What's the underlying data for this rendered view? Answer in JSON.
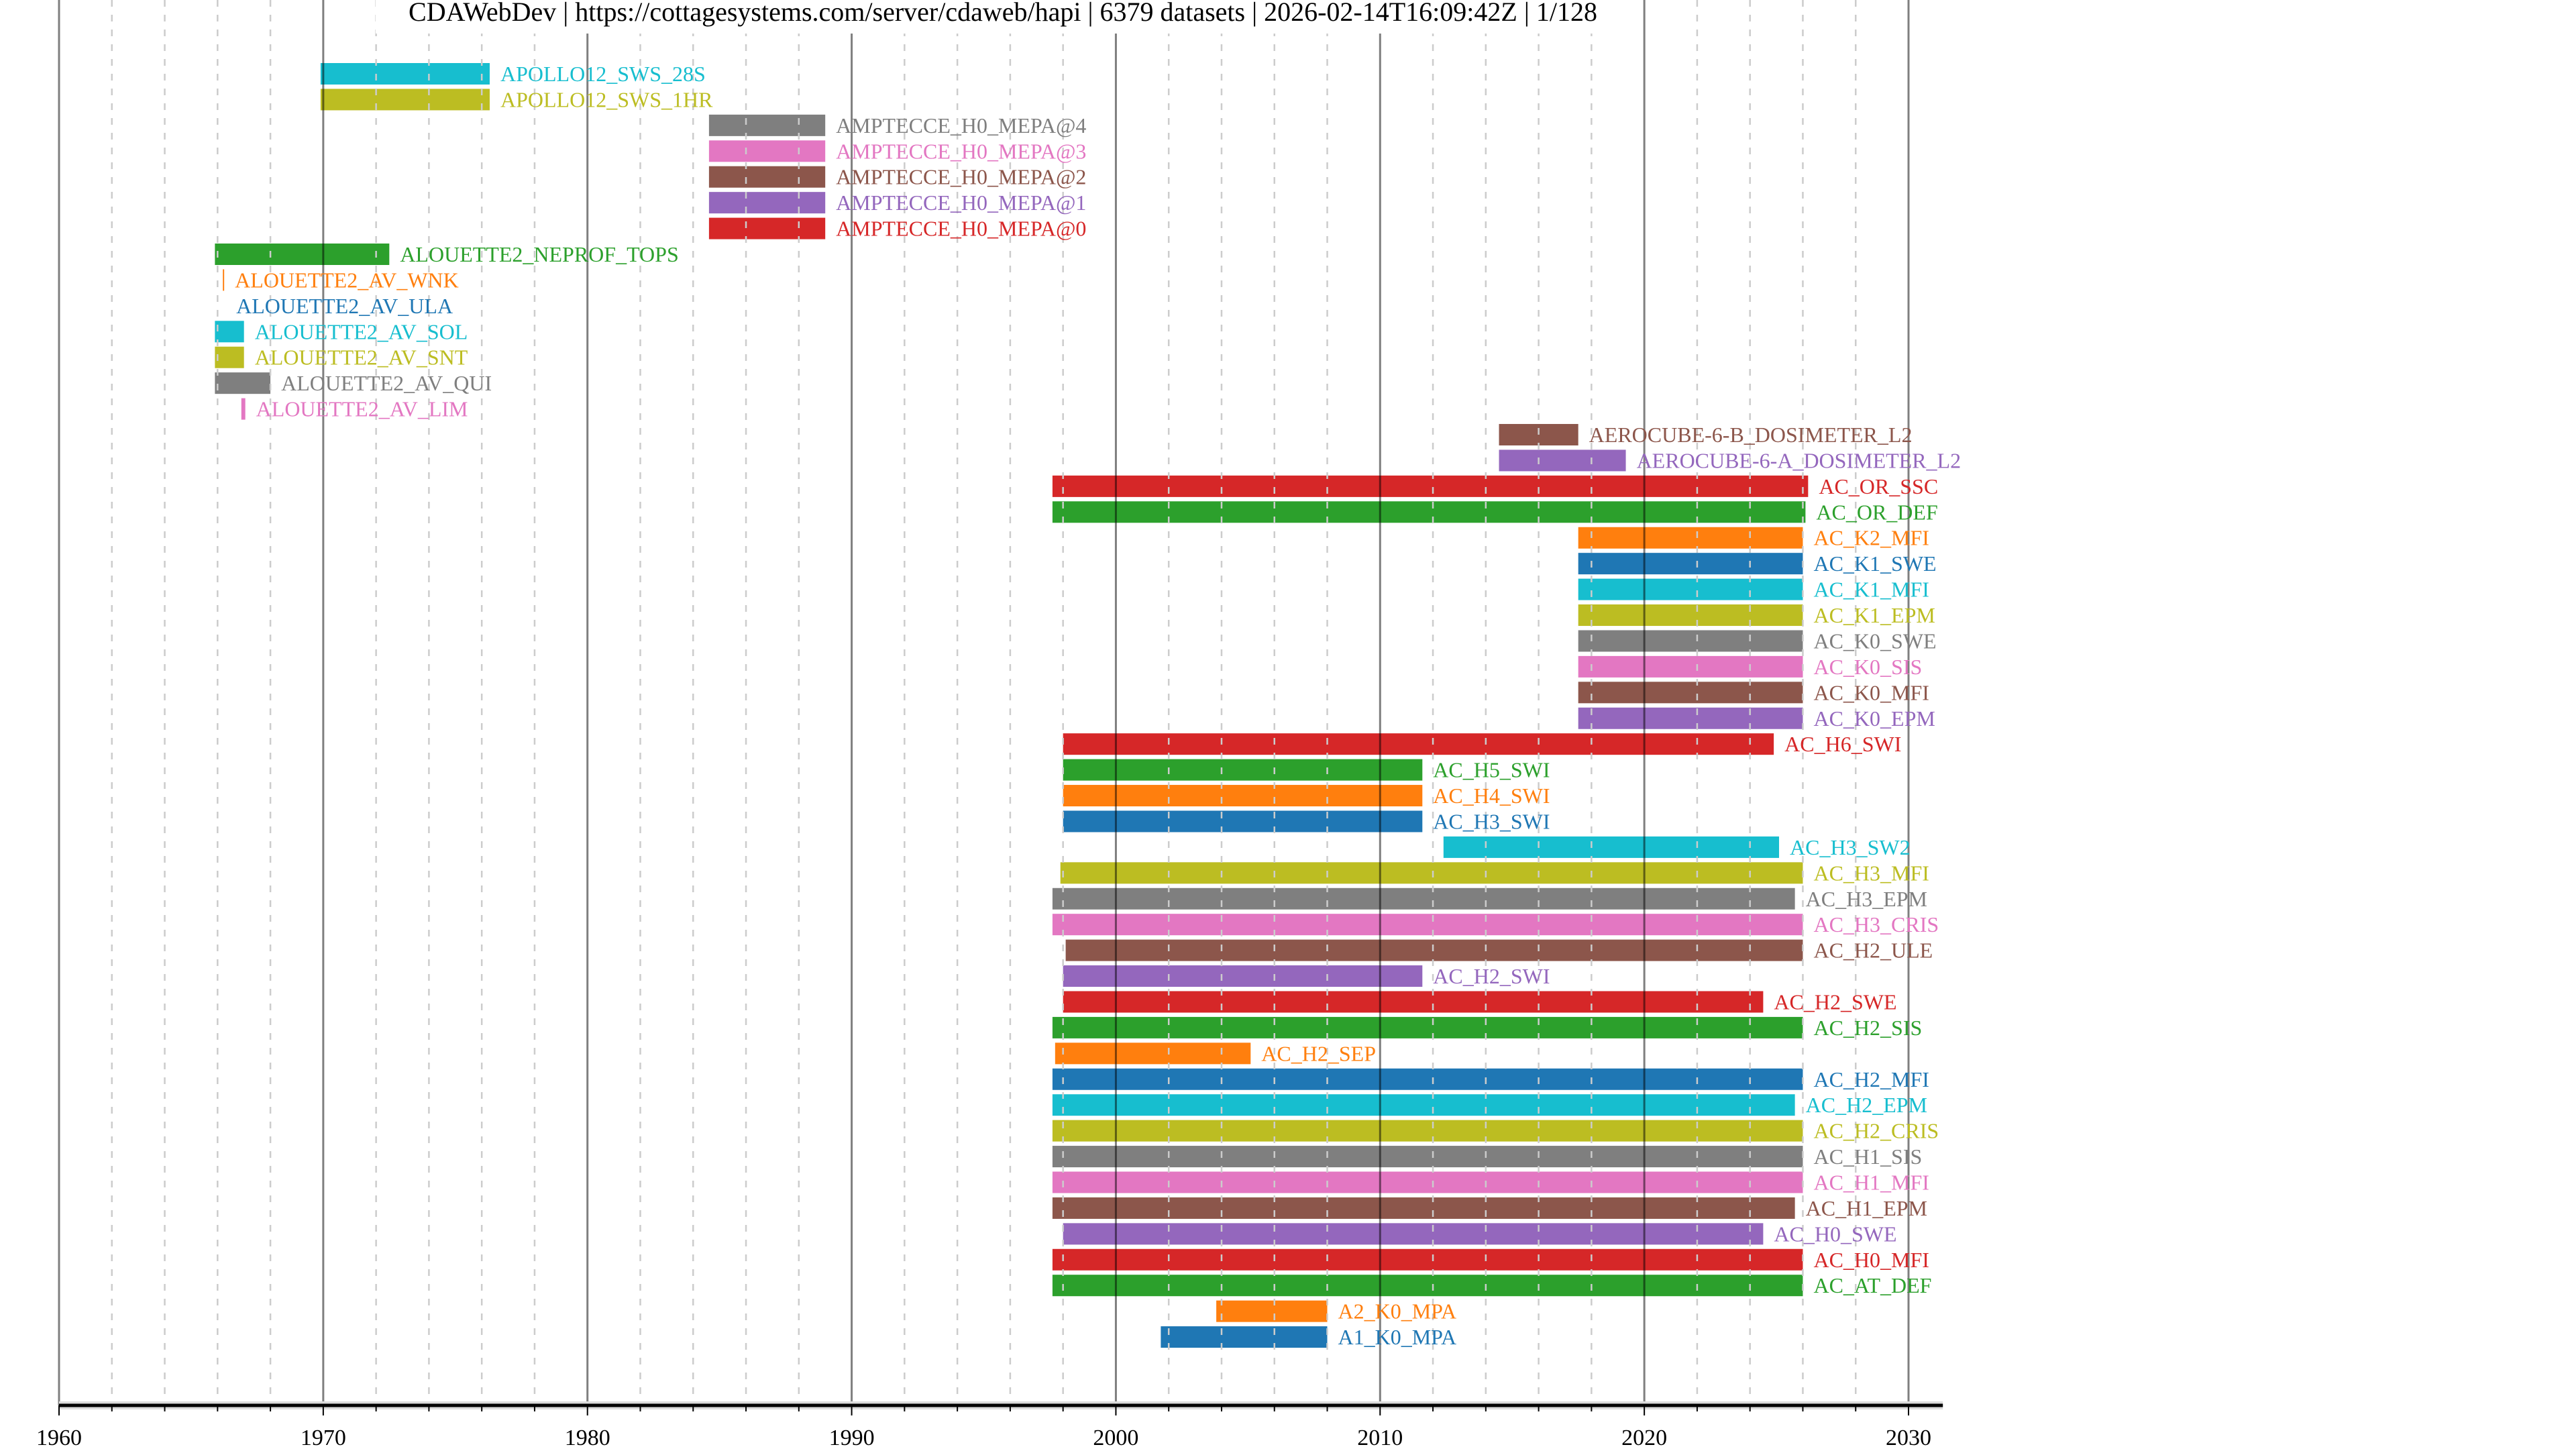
{
  "chart_data": {
    "type": "bar",
    "orientation": "horizontal-timeline",
    "title": "CDAWebDev | https://cottagesystems.com/server/cdaweb/hapi | 6379 datasets | 2026-02-14T16:09:42Z | 1/128",
    "xlabel": "",
    "ylabel": "",
    "xlim": [
      1960,
      2031.3
    ],
    "xticks": [
      "1960",
      "1970",
      "1980",
      "1990",
      "2000",
      "2010",
      "2020",
      "2030"
    ],
    "grid": {
      "major": "every 10 years, solid",
      "minor": "every 2 years, dashed"
    },
    "legend": "none (labels at bar ends)",
    "palette": [
      "#1f77b4",
      "#ff7f0e",
      "#2ca02c",
      "#d62728",
      "#9467bd",
      "#8c564b",
      "#e377c2",
      "#7f7f7f",
      "#bcbd22",
      "#17becf"
    ],
    "series": [
      {
        "name": "APOLLO12_SWS_28S",
        "start": 1969.9,
        "end": 1976.3,
        "color": "#17becf"
      },
      {
        "name": "APOLLO12_SWS_1HR",
        "start": 1969.9,
        "end": 1976.3,
        "color": "#bcbd22"
      },
      {
        "name": "AMPTECCE_H0_MEPA@4",
        "start": 1984.6,
        "end": 1989.0,
        "color": "#7f7f7f"
      },
      {
        "name": "AMPTECCE_H0_MEPA@3",
        "start": 1984.6,
        "end": 1989.0,
        "color": "#e377c2"
      },
      {
        "name": "AMPTECCE_H0_MEPA@2",
        "start": 1984.6,
        "end": 1989.0,
        "color": "#8c564b"
      },
      {
        "name": "AMPTECCE_H0_MEPA@1",
        "start": 1984.6,
        "end": 1989.0,
        "color": "#9467bd"
      },
      {
        "name": "AMPTECCE_H0_MEPA@0",
        "start": 1984.6,
        "end": 1989.0,
        "color": "#d62728"
      },
      {
        "name": "ALOUETTE2_NEPROF_TOPS",
        "start": 1965.9,
        "end": 1972.5,
        "color": "#2ca02c"
      },
      {
        "name": "ALOUETTE2_AV_WNK",
        "start": 1966.2,
        "end": 1966.25,
        "color": "#ff7f0e"
      },
      {
        "name": "ALOUETTE2_AV_ULA",
        "start": 1966.3,
        "end": 1966.3,
        "color": "#1f77b4"
      },
      {
        "name": "ALOUETTE2_AV_SOL",
        "start": 1965.9,
        "end": 1967.0,
        "color": "#17becf"
      },
      {
        "name": "ALOUETTE2_AV_SNT",
        "start": 1965.9,
        "end": 1967.0,
        "color": "#bcbd22"
      },
      {
        "name": "ALOUETTE2_AV_QUI",
        "start": 1965.9,
        "end": 1968.0,
        "color": "#7f7f7f"
      },
      {
        "name": "ALOUETTE2_AV_LIM",
        "start": 1966.9,
        "end": 1967.05,
        "color": "#e377c2"
      },
      {
        "name": "AEROCUBE-6-B_DOSIMETER_L2",
        "start": 2014.5,
        "end": 2017.5,
        "color": "#8c564b"
      },
      {
        "name": "AEROCUBE-6-A_DOSIMETER_L2",
        "start": 2014.5,
        "end": 2019.3,
        "color": "#9467bd"
      },
      {
        "name": "AC_OR_SSC",
        "start": 1997.6,
        "end": 2026.2,
        "color": "#d62728"
      },
      {
        "name": "AC_OR_DEF",
        "start": 1997.6,
        "end": 2026.1,
        "color": "#2ca02c"
      },
      {
        "name": "AC_K2_MFI",
        "start": 2017.5,
        "end": 2026.0,
        "color": "#ff7f0e"
      },
      {
        "name": "AC_K1_SWE",
        "start": 2017.5,
        "end": 2026.0,
        "color": "#1f77b4"
      },
      {
        "name": "AC_K1_MFI",
        "start": 2017.5,
        "end": 2026.0,
        "color": "#17becf"
      },
      {
        "name": "AC_K1_EPM",
        "start": 2017.5,
        "end": 2026.0,
        "color": "#bcbd22"
      },
      {
        "name": "AC_K0_SWE",
        "start": 2017.5,
        "end": 2026.0,
        "color": "#7f7f7f"
      },
      {
        "name": "AC_K0_SIS",
        "start": 2017.5,
        "end": 2026.0,
        "color": "#e377c2"
      },
      {
        "name": "AC_K0_MFI",
        "start": 2017.5,
        "end": 2026.0,
        "color": "#8c564b"
      },
      {
        "name": "AC_K0_EPM",
        "start": 2017.5,
        "end": 2026.0,
        "color": "#9467bd"
      },
      {
        "name": "AC_H6_SWI",
        "start": 1998.0,
        "end": 2024.9,
        "color": "#d62728"
      },
      {
        "name": "AC_H5_SWI",
        "start": 1998.0,
        "end": 2011.6,
        "color": "#2ca02c"
      },
      {
        "name": "AC_H4_SWI",
        "start": 1998.0,
        "end": 2011.6,
        "color": "#ff7f0e"
      },
      {
        "name": "AC_H3_SWI",
        "start": 1998.0,
        "end": 2011.6,
        "color": "#1f77b4"
      },
      {
        "name": "AC_H3_SW2",
        "start": 2012.4,
        "end": 2025.1,
        "color": "#17becf"
      },
      {
        "name": "AC_H3_MFI",
        "start": 1997.9,
        "end": 2026.0,
        "color": "#bcbd22"
      },
      {
        "name": "AC_H3_EPM",
        "start": 1997.6,
        "end": 2025.7,
        "color": "#7f7f7f"
      },
      {
        "name": "AC_H3_CRIS",
        "start": 1997.6,
        "end": 2026.0,
        "color": "#e377c2"
      },
      {
        "name": "AC_H2_ULE",
        "start": 1998.1,
        "end": 2026.0,
        "color": "#8c564b"
      },
      {
        "name": "AC_H2_SWI",
        "start": 1998.0,
        "end": 2011.6,
        "color": "#9467bd"
      },
      {
        "name": "AC_H2_SWE",
        "start": 1998.0,
        "end": 2024.5,
        "color": "#d62728"
      },
      {
        "name": "AC_H2_SIS",
        "start": 1997.6,
        "end": 2026.0,
        "color": "#2ca02c"
      },
      {
        "name": "AC_H2_SEP",
        "start": 1997.7,
        "end": 2005.1,
        "color": "#ff7f0e"
      },
      {
        "name": "AC_H2_MFI",
        "start": 1997.6,
        "end": 2026.0,
        "color": "#1f77b4"
      },
      {
        "name": "AC_H2_EPM",
        "start": 1997.6,
        "end": 2025.7,
        "color": "#17becf"
      },
      {
        "name": "AC_H2_CRIS",
        "start": 1997.6,
        "end": 2026.0,
        "color": "#bcbd22"
      },
      {
        "name": "AC_H1_SIS",
        "start": 1997.6,
        "end": 2026.0,
        "color": "#7f7f7f"
      },
      {
        "name": "AC_H1_MFI",
        "start": 1997.6,
        "end": 2026.0,
        "color": "#e377c2"
      },
      {
        "name": "AC_H1_EPM",
        "start": 1997.6,
        "end": 2025.7,
        "color": "#8c564b"
      },
      {
        "name": "AC_H0_SWE",
        "start": 1998.0,
        "end": 2024.5,
        "color": "#9467bd"
      },
      {
        "name": "AC_H0_MFI",
        "start": 1997.6,
        "end": 2026.0,
        "color": "#d62728"
      },
      {
        "name": "AC_AT_DEF",
        "start": 1997.6,
        "end": 2026.0,
        "color": "#2ca02c"
      },
      {
        "name": "A2_K0_MPA",
        "start": 2003.8,
        "end": 2008.0,
        "color": "#ff7f0e"
      },
      {
        "name": "A1_K0_MPA",
        "start": 2001.7,
        "end": 2008.0,
        "color": "#1f77b4"
      }
    ]
  }
}
